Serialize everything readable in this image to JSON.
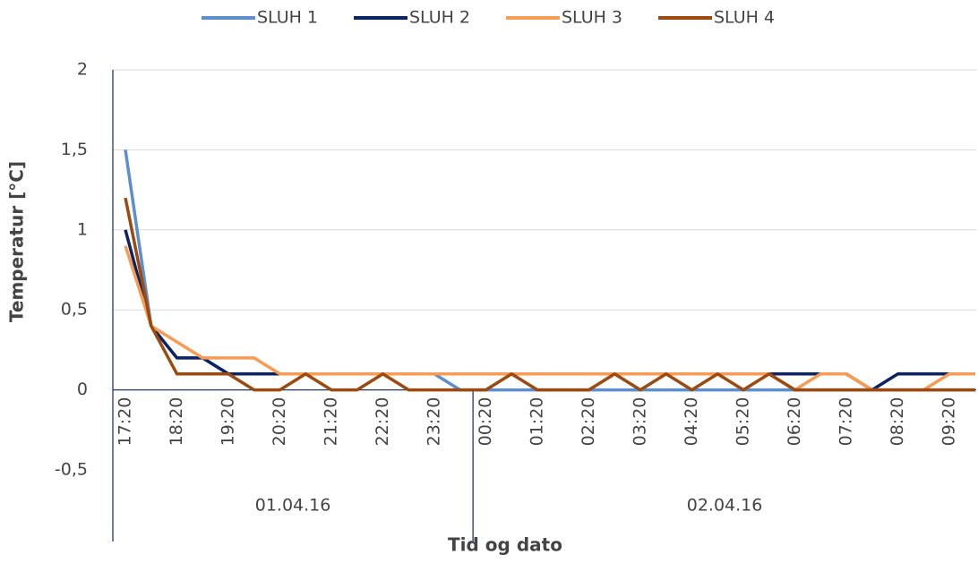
{
  "chart_data": {
    "type": "line",
    "x_label": "Tid og dato",
    "y_label": "Temperatur [°C]",
    "categories": [
      "17:20",
      null,
      "18:20",
      null,
      "19:20",
      null,
      "20:20",
      null,
      "21:20",
      null,
      "22:20",
      null,
      "23:20",
      null,
      "00:20",
      null,
      "01:20",
      null,
      "02:20",
      null,
      "03:20",
      null,
      "04:20",
      null,
      "05:20",
      null,
      "06:20",
      null,
      "07:20",
      null,
      "08:20",
      null,
      "09:20",
      null
    ],
    "date_groups": [
      "01.04.16",
      "02.04.16"
    ],
    "series": [
      {
        "name": "SLUH 1",
        "color": "#5b8fce",
        "values": [
          1.5,
          0.4,
          0.2,
          0.2,
          0.1,
          0.1,
          0.1,
          0.1,
          0.1,
          0.1,
          0.1,
          0.1,
          0.1,
          0,
          0,
          0,
          0,
          0,
          0,
          0,
          0,
          0,
          0,
          0,
          0,
          0,
          0,
          0,
          0,
          0,
          0,
          0,
          0,
          0
        ]
      },
      {
        "name": "SLUH 2",
        "color": "#0c2461",
        "values": [
          1.0,
          0.4,
          0.2,
          0.2,
          0.1,
          0.1,
          0.1,
          0.1,
          0.1,
          0.1,
          0.1,
          0.1,
          0.1,
          0.1,
          0.1,
          0.1,
          0.1,
          0.1,
          0.1,
          0.1,
          0.1,
          0.1,
          0.1,
          0.1,
          0.1,
          0.1,
          0.1,
          0.1,
          0.1,
          0,
          0.1,
          0.1,
          0.1,
          0.1
        ]
      },
      {
        "name": "SLUH 3",
        "color": "#f79b55",
        "values": [
          0.9,
          0.4,
          0.3,
          0.2,
          0.2,
          0.2,
          0.1,
          0.1,
          0.1,
          0.1,
          0.1,
          0.1,
          0.1,
          0.1,
          0.1,
          0.1,
          0.1,
          0.1,
          0.1,
          0.1,
          0.1,
          0.1,
          0.1,
          0.1,
          0.1,
          0.1,
          0,
          0.1,
          0.1,
          0,
          0,
          0,
          0.1,
          0.1
        ]
      },
      {
        "name": "SLUH 4",
        "color": "#9c4a10",
        "values": [
          1.2,
          0.4,
          0.1,
          0.1,
          0.1,
          0,
          0,
          0.1,
          0,
          0,
          0.1,
          0,
          0,
          0,
          0,
          0.1,
          0,
          0,
          0,
          0.1,
          0,
          0.1,
          0,
          0.1,
          0,
          0.1,
          0,
          0,
          0,
          0,
          0,
          0,
          0,
          0
        ]
      }
    ],
    "ylim": [
      -0.5,
      2
    ],
    "yticks": [
      {
        "value": -0.5,
        "label": "-0,5"
      },
      0,
      {
        "value": 0.5,
        "label": "0,5"
      },
      1,
      {
        "value": 1.5,
        "label": "1,5"
      },
      2
    ],
    "grid": true,
    "legend": "top"
  }
}
